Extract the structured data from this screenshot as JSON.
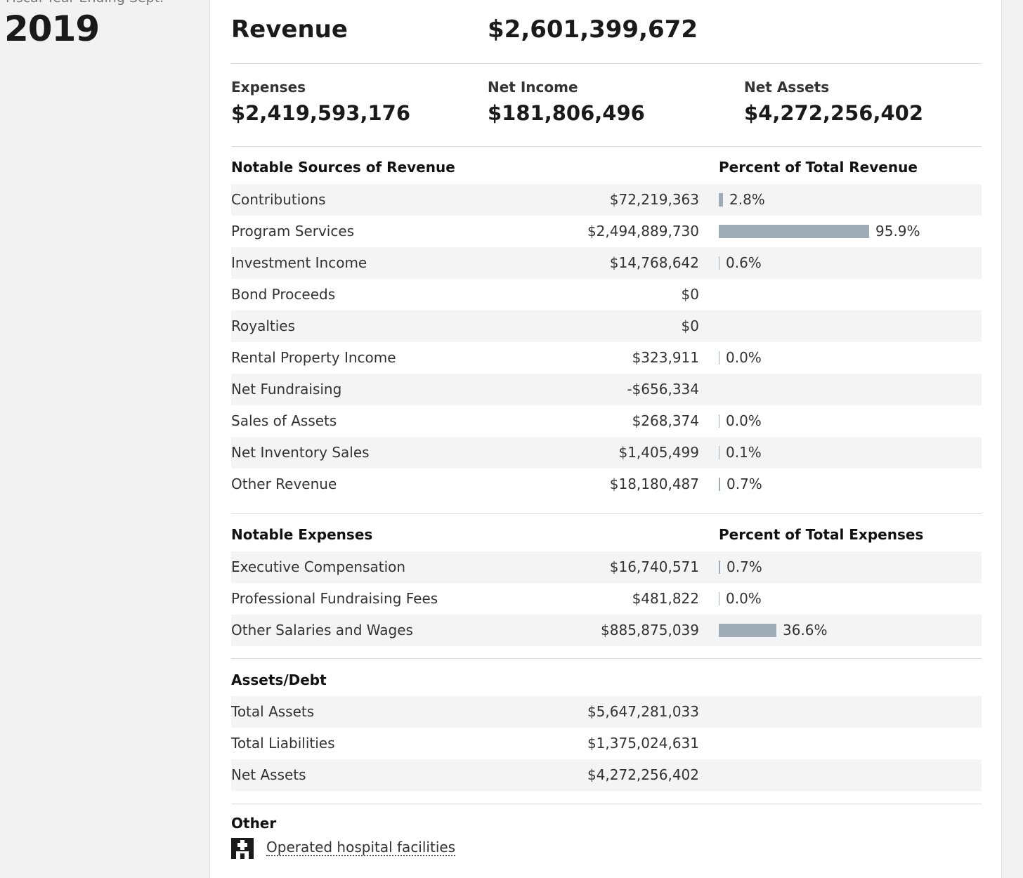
{
  "sidebar": {
    "fiscal_label": "Fiscal Year Ending Sept.",
    "year": "2019"
  },
  "headline": {
    "label": "Revenue",
    "value": "$2,601,399,672"
  },
  "summary": [
    {
      "label": "Expenses",
      "value": "$2,419,593,176"
    },
    {
      "label": "Net Income",
      "value": "$181,806,496"
    },
    {
      "label": "Net Assets",
      "value": "$4,272,256,402"
    }
  ],
  "revenue": {
    "title": "Notable Sources of Revenue",
    "pct_title": "Percent of Total Revenue",
    "rows": [
      {
        "label": "Contributions",
        "value": "$72,219,363",
        "pct": "2.8%",
        "fraction": 0.028
      },
      {
        "label": "Program Services",
        "value": "$2,494,889,730",
        "pct": "95.9%",
        "fraction": 0.959
      },
      {
        "label": "Investment Income",
        "value": "$14,768,642",
        "pct": "0.6%",
        "fraction": 0.006
      },
      {
        "label": "Bond Proceeds",
        "value": "$0",
        "pct": "",
        "fraction": null
      },
      {
        "label": "Royalties",
        "value": "$0",
        "pct": "",
        "fraction": null
      },
      {
        "label": "Rental Property Income",
        "value": "$323,911",
        "pct": "0.0%",
        "fraction": 0.0
      },
      {
        "label": "Net Fundraising",
        "value": "-$656,334",
        "pct": "",
        "fraction": null
      },
      {
        "label": "Sales of Assets",
        "value": "$268,374",
        "pct": "0.0%",
        "fraction": 0.0
      },
      {
        "label": "Net Inventory Sales",
        "value": "$1,405,499",
        "pct": "0.1%",
        "fraction": 0.001
      },
      {
        "label": "Other Revenue",
        "value": "$18,180,487",
        "pct": "0.7%",
        "fraction": 0.007
      }
    ]
  },
  "expenses": {
    "title": "Notable Expenses",
    "pct_title": "Percent of Total Expenses",
    "rows": [
      {
        "label": "Executive Compensation",
        "value": "$16,740,571",
        "pct": "0.7%",
        "fraction": 0.007
      },
      {
        "label": "Professional Fundraising Fees",
        "value": "$481,822",
        "pct": "0.0%",
        "fraction": 0.0
      },
      {
        "label": "Other Salaries and Wages",
        "value": "$885,875,039",
        "pct": "36.6%",
        "fraction": 0.366
      }
    ]
  },
  "assets": {
    "title": "Assets/Debt",
    "rows": [
      {
        "label": "Total Assets",
        "value": "$5,647,281,033"
      },
      {
        "label": "Total Liabilities",
        "value": "$1,375,024,631"
      },
      {
        "label": "Net Assets",
        "value": "$4,272,256,402"
      }
    ]
  },
  "other": {
    "title": "Other",
    "items": [
      {
        "icon": "hospital-icon",
        "label": "Operated hospital facilities"
      }
    ]
  }
}
